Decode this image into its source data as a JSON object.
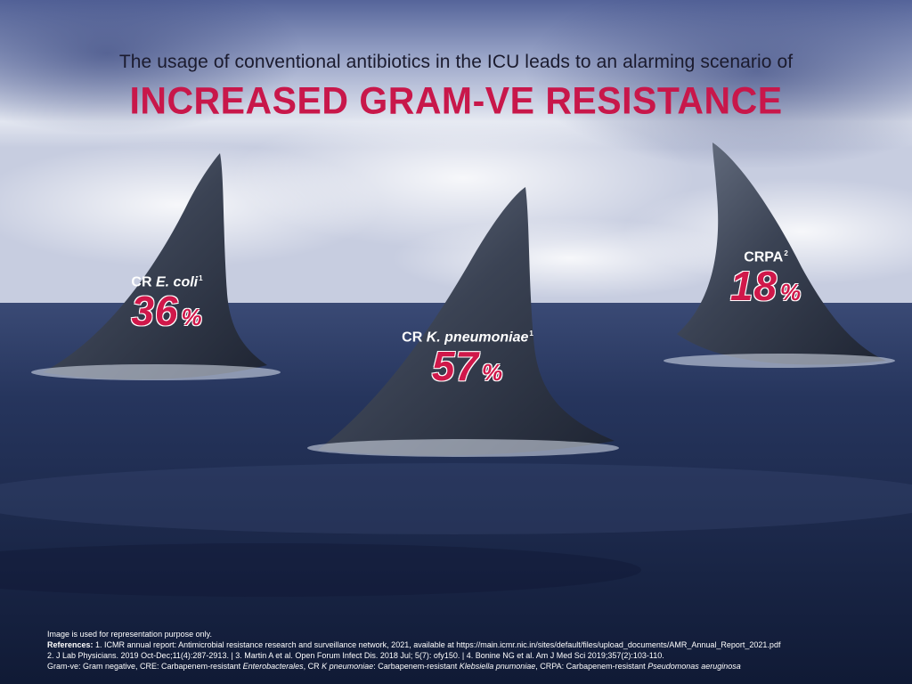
{
  "header": {
    "subtitle": "The usage of conventional antibiotics in the ICU leads to an alarming scenario of",
    "title": "INCREASED GRAM-VE RESISTANCE"
  },
  "fins": [
    {
      "name_prefix": "CR ",
      "name_italic": "E. coli",
      "ref": "1",
      "value": "36",
      "unit": "%"
    },
    {
      "name_prefix": "CR ",
      "name_italic": "K. pneumoniae",
      "ref": "1",
      "value": "57",
      "unit": "%"
    },
    {
      "name_prefix": "CRPA",
      "name_italic": "",
      "ref": "2",
      "value": "18",
      "unit": "%"
    }
  ],
  "footer": {
    "disclaimer": "Image is used for representation purpose only.",
    "references_label": "References:",
    "references_line1": " 1. ICMR annual report: Antimicrobial resistance research and surveillance network, 2021, available at https://main.icmr.nic.in/sites/default/files/upload_documents/AMR_Annual_Report_2021.pdf",
    "references_line2": "2. J Lab Physicians. 2019 Oct-Dec;11(4):287-2913. | 3. Martin A et al. Open Forum Infect Dis. 2018 Jul; 5(7): ofy150. | 4. Bonine NG et al. Am J Med Sci 2019;357(2):103-110.",
    "abbr_part1": "Gram-ve: Gram negative, CRE: Carbapenem-resistant ",
    "abbr_italic1": "Enterobacterales",
    "abbr_part2": ", CR ",
    "abbr_italic2": "K pneumoniae",
    "abbr_part3": ": Carbapenem-resistant ",
    "abbr_italic3": "Klebsiella pnumoniae",
    "abbr_part4": ", CRPA: Carbapenem-resistant ",
    "abbr_italic4": "Pseudomonas aeruginosa"
  },
  "colors": {
    "accent": "#c8174a",
    "sky_top": "#4a5a8e",
    "sky_mid": "#dfe4ef",
    "sea": "#1a2747",
    "fin": "#3a4252"
  }
}
